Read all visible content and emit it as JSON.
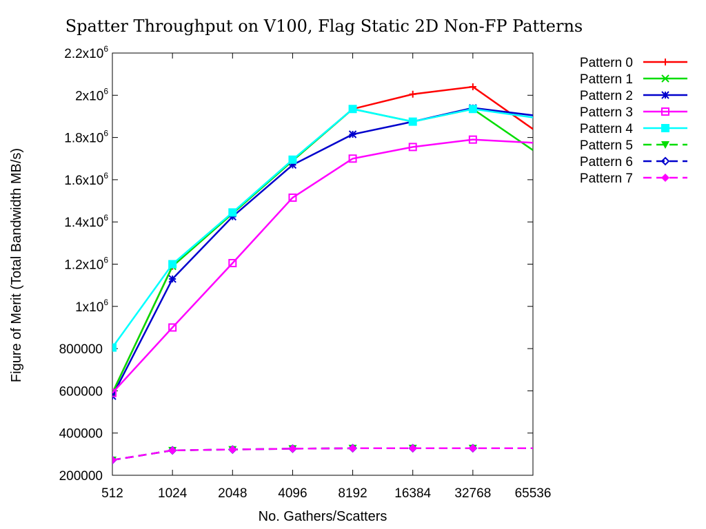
{
  "chart_data": {
    "type": "line",
    "title": "Spatter Throughput on V100, Flag Static 2D Non-FP Patterns",
    "xlabel": "No. Gathers/Scatters",
    "ylabel": "Figure of Merit (Total Bandwidth MB/s)",
    "x_scale": "log2",
    "categories": [
      "512",
      "1024",
      "2048",
      "4096",
      "8192",
      "16384",
      "32768",
      "65536"
    ],
    "x": [
      512,
      1024,
      2048,
      4096,
      8192,
      16384,
      32768,
      65536
    ],
    "ylim": [
      200000,
      2200000
    ],
    "y_ticks": [
      {
        "value": 200000,
        "label": "200000"
      },
      {
        "value": 400000,
        "label": "400000"
      },
      {
        "value": 600000,
        "label": "600000"
      },
      {
        "value": 800000,
        "label": "800000"
      },
      {
        "value": 1000000,
        "base": "1x10",
        "exp": "6"
      },
      {
        "value": 1200000,
        "base": "1.2x10",
        "exp": "6"
      },
      {
        "value": 1400000,
        "base": "1.4x10",
        "exp": "6"
      },
      {
        "value": 1600000,
        "base": "1.6x10",
        "exp": "6"
      },
      {
        "value": 1800000,
        "base": "1.8x10",
        "exp": "6"
      },
      {
        "value": 2000000,
        "base": "2x10",
        "exp": "6"
      },
      {
        "value": 2200000,
        "base": "2.2x10",
        "exp": "6"
      }
    ],
    "grid": false,
    "legend_position": "outside-top-right",
    "series": [
      {
        "name": "Pattern 0",
        "color": "#ff0000",
        "marker": "plus",
        "dash": false,
        "values": [
          590000,
          1190000,
          1440000,
          1690000,
          1935000,
          2005000,
          2040000,
          1840000
        ]
      },
      {
        "name": "Pattern 1",
        "color": "#00dd00",
        "marker": "cross",
        "dash": false,
        "values": [
          590000,
          1190000,
          1440000,
          1690000,
          1935000,
          1875000,
          1935000,
          1740000
        ]
      },
      {
        "name": "Pattern 2",
        "color": "#0000cc",
        "marker": "star",
        "dash": false,
        "values": [
          575000,
          1130000,
          1425000,
          1670000,
          1815000,
          1875000,
          1940000,
          1905000
        ]
      },
      {
        "name": "Pattern 3",
        "color": "#ff00ff",
        "marker": "open-square",
        "dash": false,
        "values": [
          590000,
          900000,
          1205000,
          1515000,
          1700000,
          1755000,
          1790000,
          1775000
        ]
      },
      {
        "name": "Pattern 4",
        "color": "#00ffff",
        "marker": "filled-square",
        "dash": false,
        "values": [
          805000,
          1200000,
          1445000,
          1695000,
          1935000,
          1875000,
          1935000,
          1895000
        ]
      },
      {
        "name": "Pattern 5",
        "color": "#00dd00",
        "marker": "filled-triangle-down",
        "dash": true,
        "values": [
          272000,
          318000,
          322000,
          326000,
          328000,
          328000,
          328000,
          328000
        ]
      },
      {
        "name": "Pattern 6",
        "color": "#0000cc",
        "marker": "open-diamond",
        "dash": true,
        "values": [
          272000,
          318000,
          322000,
          326000,
          328000,
          328000,
          328000,
          328000
        ]
      },
      {
        "name": "Pattern 7",
        "color": "#ff00ff",
        "marker": "filled-diamond",
        "dash": true,
        "values": [
          272000,
          318000,
          322000,
          326000,
          328000,
          328000,
          328000,
          328000
        ]
      }
    ]
  }
}
